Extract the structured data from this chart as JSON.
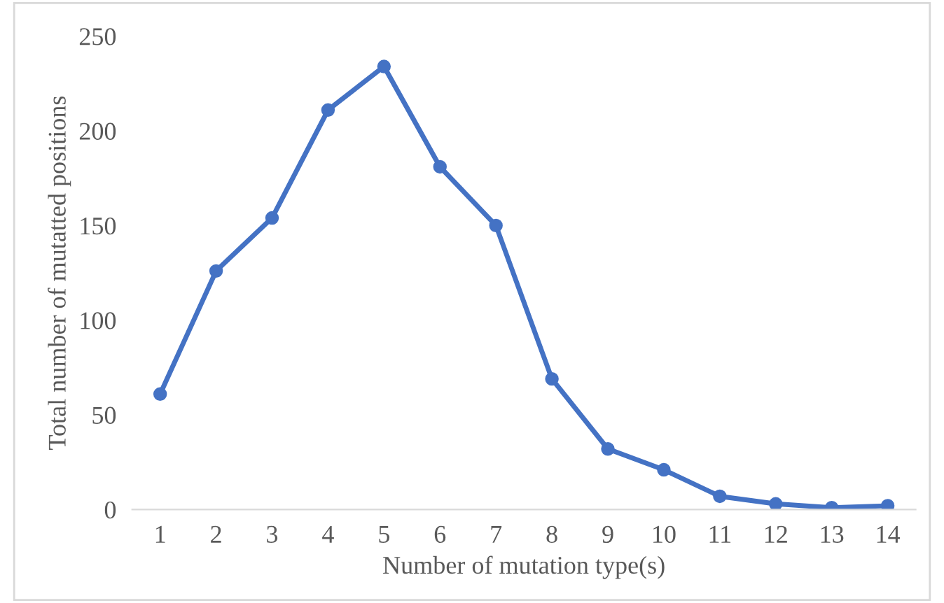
{
  "chart_data": {
    "type": "line",
    "xlabel": "Number of mutation type(s)",
    "ylabel": "Total number of mutatted positions",
    "categories": [
      "1",
      "2",
      "3",
      "4",
      "5",
      "6",
      "7",
      "8",
      "9",
      "10",
      "11",
      "12",
      "13",
      "14"
    ],
    "series": [
      {
        "color": "#4472c4",
        "values": [
          61,
          126,
          154,
          211,
          234,
          181,
          150,
          69,
          32,
          21,
          7,
          3,
          1,
          2
        ]
      }
    ],
    "ylim": [
      0,
      250
    ],
    "yticks": [
      0,
      50,
      100,
      150,
      200,
      250
    ],
    "grid": false,
    "legend": false,
    "marker": "circle",
    "line_style": "solid"
  }
}
